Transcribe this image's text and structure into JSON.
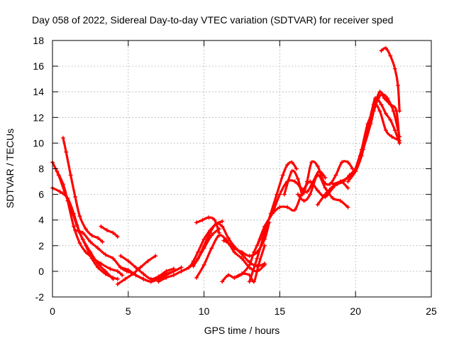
{
  "chart_data": {
    "type": "scatter",
    "title": "Day 058 of 2022, Sidereal Day-to-day VTEC variation (SDTVAR) for receiver sped",
    "xlabel": "GPS time / hours",
    "ylabel": "SDTVAR / TECUs",
    "xlim": [
      0,
      25
    ],
    "ylim": [
      -2,
      18
    ],
    "xticks": [
      0,
      5,
      10,
      15,
      20,
      25
    ],
    "yticks": [
      -2,
      0,
      2,
      4,
      6,
      8,
      10,
      12,
      14,
      16,
      18
    ],
    "grid": true,
    "marker": "+",
    "color": "#ff0000",
    "series": [
      {
        "name": "trace-1",
        "x": [
          0.0,
          0.4,
          0.8,
          1.2,
          1.6,
          2.0,
          2.5,
          3.0,
          3.5,
          4.0
        ],
        "y": [
          8.5,
          7.5,
          6.2,
          5.0,
          3.6,
          2.5,
          1.5,
          0.6,
          0.0,
          -0.6
        ]
      },
      {
        "name": "trace-2",
        "x": [
          0.0,
          0.5,
          1.0,
          1.4,
          1.8,
          2.2,
          2.6,
          3.0,
          3.5,
          4.0,
          4.3
        ],
        "y": [
          6.5,
          6.2,
          5.7,
          4.5,
          3.0,
          2.0,
          1.0,
          0.3,
          -0.2,
          -0.5,
          -0.6
        ]
      },
      {
        "name": "trace-3",
        "x": [
          0.7,
          0.9,
          1.2,
          1.5,
          1.8,
          2.2,
          2.6,
          3.0,
          3.3
        ],
        "y": [
          10.4,
          9.3,
          7.5,
          5.8,
          4.3,
          3.3,
          2.8,
          2.6,
          2.3
        ]
      },
      {
        "name": "trace-4",
        "x": [
          0.3,
          0.7,
          1.0,
          1.4,
          1.8,
          2.2,
          2.7,
          3.2,
          3.8,
          4.3,
          4.6
        ],
        "y": [
          7.8,
          6.8,
          5.5,
          3.5,
          2.2,
          1.5,
          1.0,
          0.6,
          0.2,
          0.0,
          -0.3
        ]
      },
      {
        "name": "trace-5",
        "x": [
          1.5,
          2.0,
          2.5,
          3.0,
          3.5,
          4.0,
          4.5,
          4.9
        ],
        "y": [
          3.2,
          3.0,
          2.3,
          1.8,
          1.3,
          1.0,
          0.3,
          0.0
        ]
      },
      {
        "name": "trace-6",
        "x": [
          3.2,
          3.6,
          4.0,
          4.3
        ],
        "y": [
          3.5,
          3.2,
          3.0,
          2.7
        ]
      },
      {
        "name": "trace-7",
        "x": [
          4.5,
          5.0,
          5.5,
          6.0,
          6.5,
          7.0,
          7.5,
          8.0
        ],
        "y": [
          1.2,
          0.8,
          0.3,
          -0.2,
          -0.6,
          -0.4,
          0.0,
          0.2
        ]
      },
      {
        "name": "trace-8",
        "x": [
          4.3,
          4.8,
          5.3,
          5.8,
          6.3,
          6.8
        ],
        "y": [
          -1.0,
          -0.6,
          -0.2,
          0.3,
          0.8,
          1.2
        ]
      },
      {
        "name": "trace-9",
        "x": [
          4.5,
          5.0,
          5.5,
          6.0,
          6.5,
          7.0,
          7.5,
          8.0
        ],
        "y": [
          0.3,
          0.1,
          -0.3,
          -0.6,
          -0.8,
          -0.5,
          -0.2,
          0.0
        ]
      },
      {
        "name": "trace-10",
        "x": [
          5.0,
          5.5,
          6.0,
          6.5,
          7.0,
          7.5,
          8.0,
          8.5
        ],
        "y": [
          0.0,
          -0.3,
          -0.6,
          -0.8,
          -0.6,
          -0.3,
          0.0,
          0.3
        ]
      },
      {
        "name": "trace-11",
        "x": [
          7.0,
          7.5,
          8.0,
          8.5,
          9.0,
          9.3,
          9.6,
          10.0,
          10.4,
          10.8,
          11.2
        ],
        "y": [
          -0.8,
          -0.5,
          -0.3,
          0.0,
          0.3,
          0.8,
          1.5,
          2.5,
          3.2,
          3.7,
          3.9
        ]
      },
      {
        "name": "trace-12",
        "x": [
          8.5,
          9.0,
          9.5,
          10.0,
          10.5,
          11.0
        ],
        "y": [
          0.0,
          0.3,
          0.8,
          1.8,
          2.8,
          3.3
        ]
      },
      {
        "name": "trace-13",
        "x": [
          9.5,
          10.0,
          10.5,
          11.0,
          11.5,
          12.0,
          12.5,
          13.0,
          13.5,
          14.0
        ],
        "y": [
          -0.5,
          0.5,
          1.8,
          2.8,
          2.4,
          1.5,
          1.0,
          0.3,
          0.0,
          0.5
        ]
      },
      {
        "name": "trace-14",
        "x": [
          9.3,
          9.6,
          10.0,
          10.4,
          10.8,
          11.2,
          11.6,
          12.1,
          12.6,
          13.0,
          13.5,
          14.0
        ],
        "y": [
          0.4,
          1.0,
          2.0,
          3.0,
          3.7,
          3.5,
          2.6,
          1.8,
          1.2,
          0.7,
          0.4,
          0.6
        ]
      },
      {
        "name": "trace-15",
        "x": [
          9.5,
          9.9,
          10.3,
          10.7,
          11.0
        ],
        "y": [
          3.8,
          4.0,
          4.2,
          4.0,
          3.0
        ]
      },
      {
        "name": "trace-16",
        "x": [
          11.3,
          11.6,
          12.0,
          12.5,
          13.0,
          13.5,
          14.0,
          14.3
        ],
        "y": [
          2.4,
          2.2,
          1.8,
          1.5,
          1.2,
          1.5,
          2.5,
          3.8
        ]
      },
      {
        "name": "trace-17",
        "x": [
          11.2,
          11.6,
          12.0,
          12.5,
          13.0,
          13.3,
          13.7,
          14.0
        ],
        "y": [
          -0.8,
          -0.3,
          -0.5,
          -0.2,
          0.5,
          1.5,
          2.5,
          3.5
        ]
      },
      {
        "name": "trace-18",
        "x": [
          12.0,
          12.5,
          13.0,
          13.3,
          13.6,
          14.0
        ],
        "y": [
          -0.5,
          -0.2,
          -0.3,
          -0.8,
          0.5,
          2.0
        ]
      },
      {
        "name": "trace-19",
        "x": [
          13.0,
          13.5,
          14.0,
          14.4,
          14.8,
          15.2,
          15.5,
          15.8,
          16.1
        ],
        "y": [
          -0.8,
          1.0,
          3.0,
          4.5,
          6.0,
          7.5,
          8.3,
          8.5,
          8.0
        ]
      },
      {
        "name": "trace-20",
        "x": [
          13.5,
          14.0,
          14.5,
          15.0,
          15.5,
          16.0,
          16.4,
          16.8,
          17.2,
          17.6,
          18.0
        ],
        "y": [
          2.0,
          3.5,
          4.5,
          6.0,
          7.0,
          7.0,
          6.5,
          6.2,
          7.0,
          7.8,
          7.3
        ]
      },
      {
        "name": "trace-21",
        "x": [
          14.5,
          15.0,
          15.5,
          16.0,
          16.5,
          17.0,
          17.5,
          18.0,
          18.5,
          19.0,
          19.5
        ],
        "y": [
          4.5,
          5.0,
          5.0,
          4.8,
          6.2,
          7.0,
          6.3,
          5.8,
          6.5,
          7.0,
          6.5
        ]
      },
      {
        "name": "trace-22",
        "x": [
          15.3,
          15.8,
          16.2,
          16.5,
          16.8,
          17.1,
          17.5,
          17.9,
          18.3,
          18.7,
          19.1,
          19.5,
          19.8
        ],
        "y": [
          6.0,
          7.8,
          7.2,
          6.0,
          7.0,
          8.5,
          8.2,
          7.0,
          6.8,
          7.5,
          8.5,
          8.5,
          8.0
        ]
      },
      {
        "name": "trace-23",
        "x": [
          16.2,
          16.6,
          17.0,
          17.5,
          18.0,
          18.5,
          19.0,
          19.5
        ],
        "y": [
          6.0,
          5.5,
          6.0,
          7.5,
          6.5,
          5.7,
          5.5,
          5.0
        ]
      },
      {
        "name": "trace-24",
        "x": [
          17.5,
          18.0,
          18.4,
          18.8,
          19.2,
          19.6,
          20.0,
          20.3,
          20.7,
          21.0,
          21.3,
          21.7,
          22.0,
          22.3,
          22.6,
          22.9
        ],
        "y": [
          5.2,
          6.0,
          6.5,
          6.8,
          7.0,
          7.5,
          8.0,
          9.0,
          10.5,
          12.0,
          13.5,
          13.0,
          12.3,
          11.8,
          11.0,
          10.0
        ]
      },
      {
        "name": "trace-25",
        "x": [
          18.5,
          19.0,
          19.5,
          20.0,
          20.5,
          21.0,
          21.3,
          21.6,
          21.9,
          22.3,
          22.7,
          22.9
        ],
        "y": [
          6.8,
          7.0,
          7.3,
          7.8,
          9.5,
          11.5,
          13.0,
          14.0,
          13.5,
          13.0,
          12.5,
          10.0
        ]
      },
      {
        "name": "trace-26",
        "x": [
          19.5,
          20.0,
          20.4,
          20.8,
          21.2,
          21.6,
          22.0,
          22.4,
          22.9
        ],
        "y": [
          7.0,
          7.8,
          9.0,
          11.0,
          13.0,
          12.5,
          11.0,
          10.5,
          10.2
        ]
      },
      {
        "name": "trace-27",
        "x": [
          20.0,
          20.4,
          20.8,
          21.2,
          21.5,
          21.8,
          22.1,
          22.5,
          22.9
        ],
        "y": [
          8.0,
          9.5,
          11.5,
          12.5,
          13.5,
          13.8,
          13.5,
          12.5,
          10.5
        ]
      },
      {
        "name": "trace-28",
        "x": [
          21.7,
          22.0,
          22.3,
          22.6,
          22.8,
          22.9
        ],
        "y": [
          17.2,
          17.4,
          16.8,
          15.8,
          14.5,
          12.5
        ]
      }
    ]
  }
}
